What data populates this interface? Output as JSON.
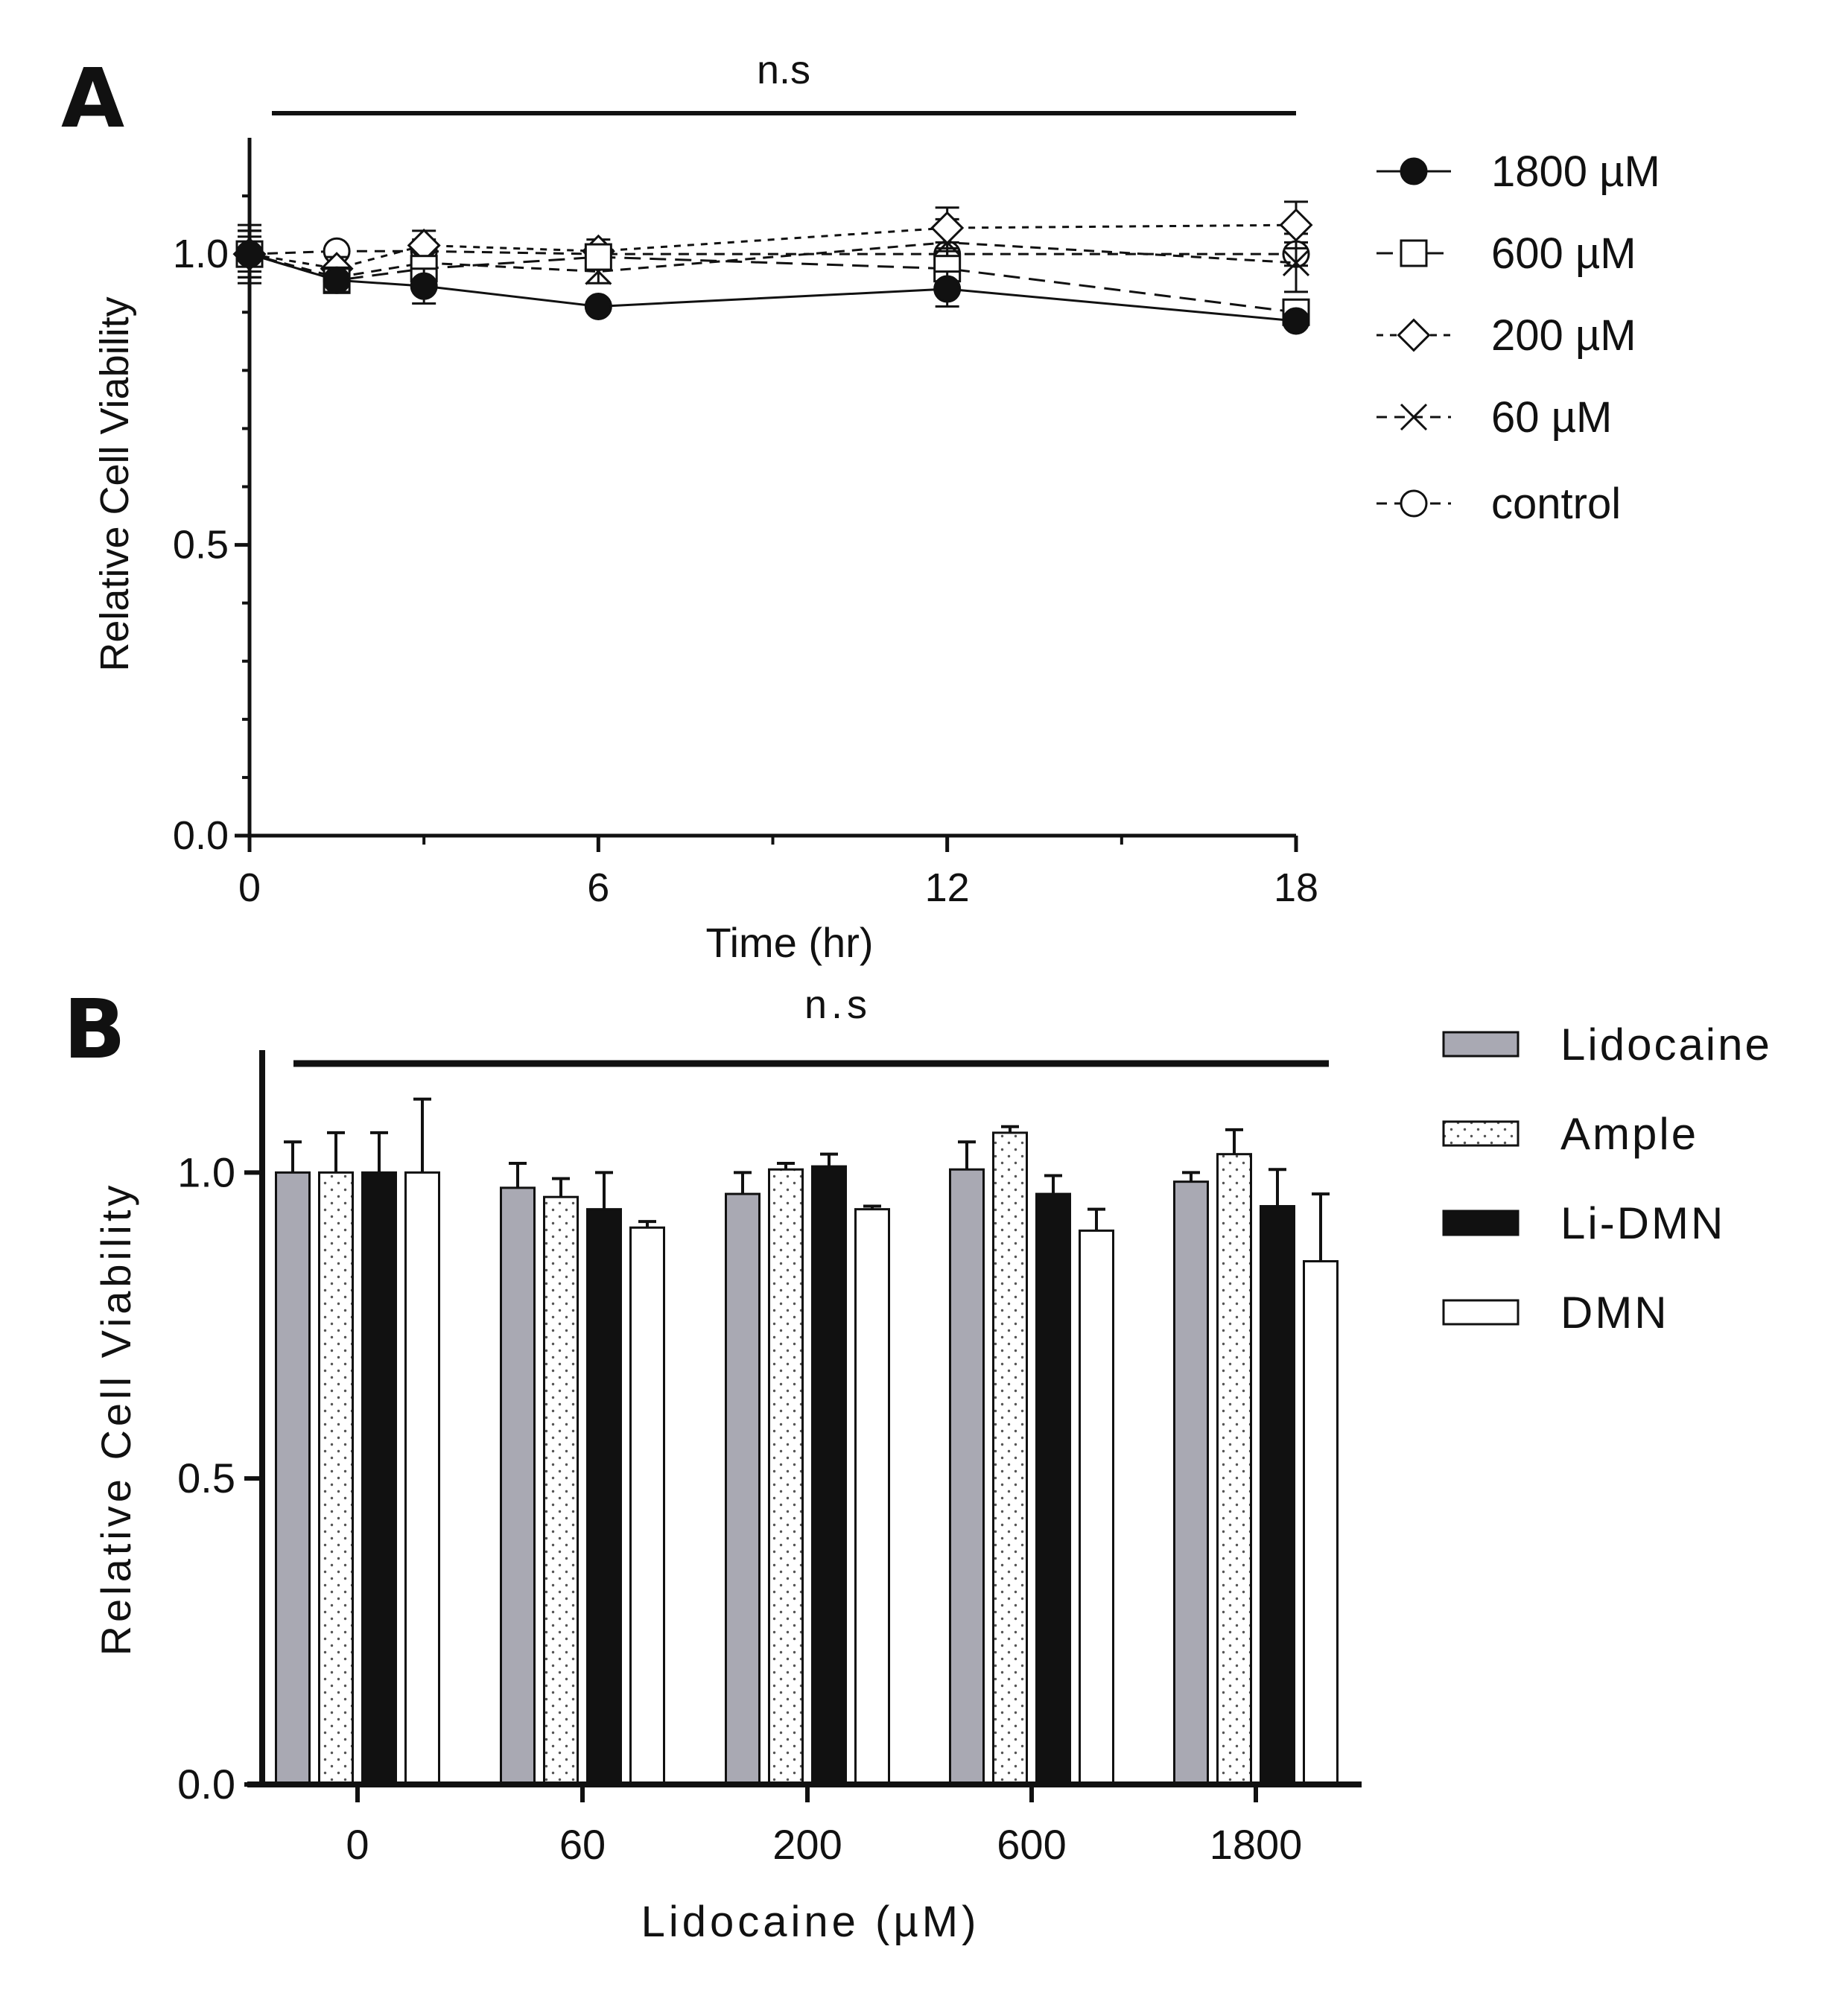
{
  "chart_data": [
    {
      "panel": "A",
      "type": "line",
      "title": "",
      "significance": "n.s",
      "xlabel": "Time (hr)",
      "ylabel": "Relative Cell Viability",
      "xlim": [
        0,
        18
      ],
      "ylim": [
        0,
        1.2
      ],
      "xticks": [
        0,
        6,
        12,
        18
      ],
      "xtick_labels": [
        "0",
        "6",
        "12",
        "18"
      ],
      "yticks": [
        0.0,
        0.5,
        1.0
      ],
      "ytick_labels": [
        "0.0",
        "0.5",
        "1.0"
      ],
      "x": [
        0,
        1.5,
        3,
        6,
        12,
        18
      ],
      "series": [
        {
          "name": "1800 µM",
          "marker": "filled-circle",
          "dash": "solid",
          "values": [
            1.0,
            0.955,
            0.945,
            0.91,
            0.94,
            0.885
          ],
          "errors": [
            0.05,
            0.02,
            0.03,
            0.01,
            0.03,
            0.01
          ]
        },
        {
          "name": "600 µM",
          "marker": "square",
          "dash": "long",
          "values": [
            1.0,
            0.955,
            0.975,
            0.995,
            0.975,
            0.9
          ],
          "errors": [
            0.04,
            0.02,
            0.02,
            0.02,
            0.03,
            0.02
          ]
        },
        {
          "name": "200 µM",
          "marker": "diamond",
          "dash": "short",
          "values": [
            1.0,
            0.975,
            1.015,
            1.005,
            1.045,
            1.05
          ],
          "errors": [
            0.04,
            0.02,
            0.025,
            0.02,
            0.035,
            0.04
          ]
        },
        {
          "name": "60 µM",
          "marker": "cross",
          "dash": "medium",
          "values": [
            1.0,
            0.96,
            0.985,
            0.97,
            1.02,
            0.985
          ],
          "errors": [
            0.04,
            0.02,
            0.03,
            0.02,
            0.04,
            0.05
          ]
        },
        {
          "name": "control",
          "marker": "open-circle",
          "dash": "medium",
          "values": [
            1.0,
            1.005,
            1.005,
            1.0,
            1.0,
            1.0
          ],
          "errors": [
            0.03,
            0.01,
            0.02,
            0.01,
            0.02,
            0.02
          ]
        }
      ]
    },
    {
      "panel": "B",
      "type": "bar",
      "title": "",
      "significance": "n.s",
      "xlabel": "Lidocaine (µM)",
      "ylabel": "Relative Cell Viability",
      "ylim": [
        0,
        1.2
      ],
      "yticks": [
        0.0,
        0.5,
        1.0
      ],
      "ytick_labels": [
        "0.0",
        "0.5",
        "1.0"
      ],
      "categories": [
        "0",
        "60",
        "200",
        "600",
        "1800"
      ],
      "series": [
        {
          "name": "Lidocaine",
          "fill": "gray",
          "values": [
            1.0,
            0.975,
            0.965,
            1.005,
            0.985
          ],
          "errors": [
            0.05,
            0.04,
            0.035,
            0.045,
            0.015
          ]
        },
        {
          "name": "Ample",
          "fill": "dotted",
          "values": [
            1.0,
            0.96,
            1.005,
            1.065,
            1.03
          ],
          "errors": [
            0.065,
            0.03,
            0.01,
            0.01,
            0.04
          ]
        },
        {
          "name": "Li-DMN",
          "fill": "black",
          "values": [
            1.0,
            0.94,
            1.01,
            0.965,
            0.945
          ],
          "errors": [
            0.065,
            0.06,
            0.02,
            0.03,
            0.06
          ]
        },
        {
          "name": "DMN",
          "fill": "white",
          "values": [
            1.0,
            0.91,
            0.94,
            0.905,
            0.855
          ],
          "errors": [
            0.12,
            0.01,
            0.005,
            0.035,
            0.11
          ]
        }
      ]
    }
  ],
  "colors": {
    "ink": "#111111",
    "gray_fill": "#a9a9b3",
    "dot": "#555555",
    "paper": "#ffffff"
  }
}
